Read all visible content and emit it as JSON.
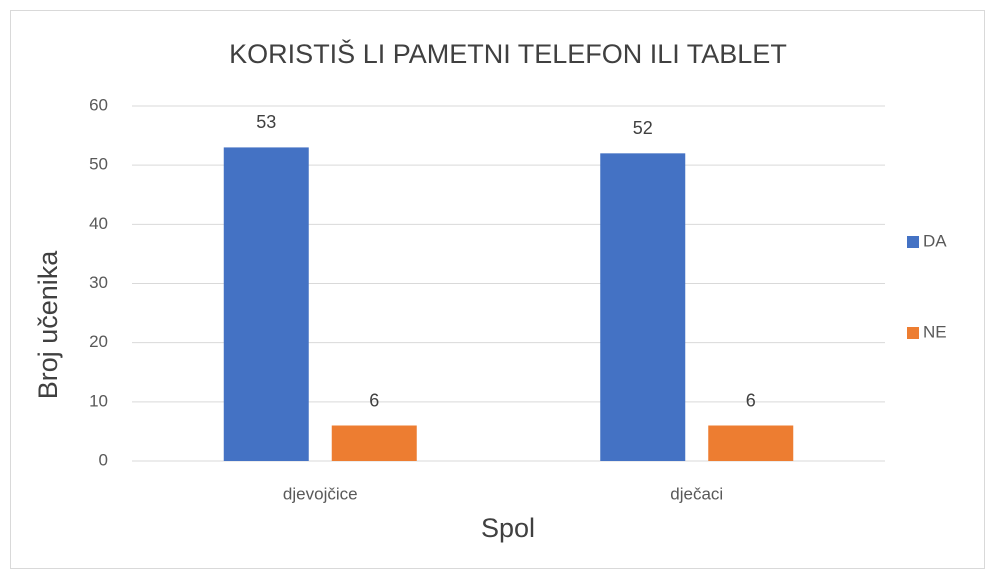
{
  "chart_data": {
    "type": "bar",
    "title": "KORISTIŠ LI PAMETNI TELEFON ILI TABLET",
    "x_label": "Spol",
    "y_label": "Broj učenika",
    "categories": [
      "djevojčice",
      "dječaci"
    ],
    "series": [
      {
        "name": "DA",
        "color": "#4472c4",
        "values": [
          53,
          52
        ]
      },
      {
        "name": "NE",
        "color": "#ed7d31",
        "values": [
          6,
          6
        ]
      }
    ],
    "ylim": [
      0,
      60
    ],
    "yticks": [
      0,
      10,
      20,
      30,
      40,
      50,
      60
    ],
    "grid": true,
    "legend": "right"
  }
}
